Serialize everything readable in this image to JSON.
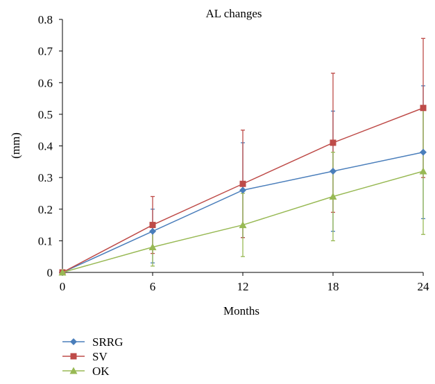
{
  "chart_data": {
    "type": "line",
    "title": "AL changes",
    "xlabel": "Months",
    "ylabel": "(mm)",
    "x": [
      0,
      6,
      12,
      18,
      24
    ],
    "xlim": [
      0,
      24
    ],
    "ylim": [
      0,
      0.8
    ],
    "yticks": [
      "0",
      "0.1",
      "0.2",
      "0.3",
      "0.4",
      "0.5",
      "0.6",
      "0.7",
      "0.8"
    ],
    "xticks": [
      "0",
      "6",
      "12",
      "18",
      "24"
    ],
    "grid": false,
    "legend_position": "bottom-left",
    "series": [
      {
        "name": "SRRG",
        "color": "#4a7ebb",
        "marker": "diamond",
        "values": [
          0,
          0.13,
          0.26,
          0.32,
          0.38
        ],
        "error_high": [
          0,
          0.2,
          0.41,
          0.51,
          0.59
        ],
        "error_low": [
          0,
          0.03,
          0.11,
          0.13,
          0.17
        ]
      },
      {
        "name": "SV",
        "color": "#be4b48",
        "marker": "square",
        "values": [
          0,
          0.15,
          0.28,
          0.41,
          0.52
        ],
        "error_high": [
          0,
          0.24,
          0.45,
          0.63,
          0.74
        ],
        "error_low": [
          0,
          0.06,
          0.11,
          0.19,
          0.3
        ]
      },
      {
        "name": "OK",
        "color": "#98b954",
        "marker": "triangle",
        "values": [
          0,
          0.08,
          0.15,
          0.24,
          0.32
        ],
        "error_high": [
          0,
          0.13,
          0.25,
          0.38,
          0.52
        ],
        "error_low": [
          0,
          0.02,
          0.05,
          0.1,
          0.12
        ]
      }
    ]
  }
}
